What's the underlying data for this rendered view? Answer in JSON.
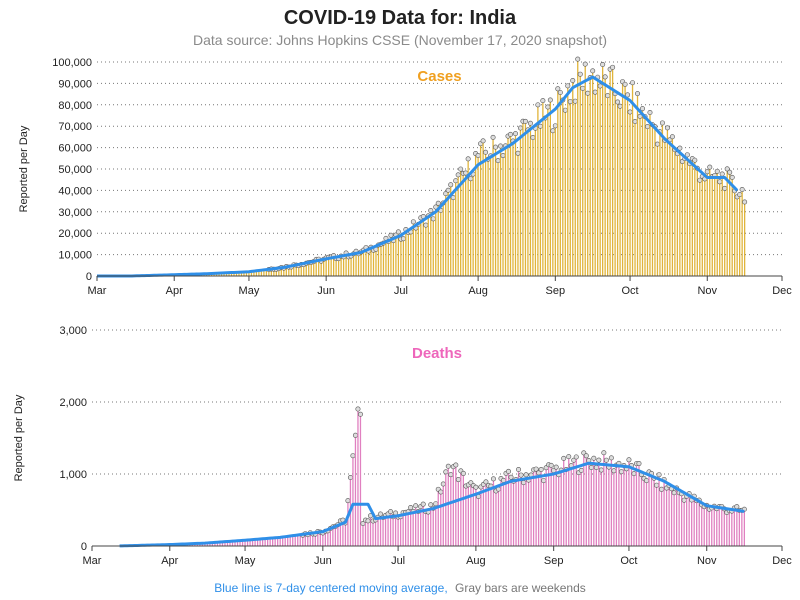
{
  "title": "COVID-19 Data for: India",
  "subtitle": "Data source: Johns Hopkins CSSE (November 17, 2020 snapshot)",
  "footnote": {
    "blue_text": "Blue line is 7-day centered moving average,",
    "gray_text": "Gray bars are weekends"
  },
  "colors": {
    "cases_bar": "#e0b43a",
    "deaths_bar": "#e080c0",
    "moving_average": "#2f8fe8",
    "cases_label": "#f0a020",
    "deaths_label": "#ee66bb",
    "footnote_blue": "#2f8fe8",
    "footnote_gray": "#777777",
    "marker_fill": "#dddddd"
  },
  "chart_data": [
    {
      "type": "bar",
      "panel_label": "Cases",
      "ylabel": "Reported per Day",
      "ylim": [
        0,
        100000
      ],
      "yticks": [
        0,
        10000,
        20000,
        30000,
        40000,
        50000,
        60000,
        70000,
        80000,
        90000,
        100000
      ],
      "ytick_labels": [
        "0",
        "10,000",
        "20,000",
        "30,000",
        "40,000",
        "50,000",
        "60,000",
        "70,000",
        "80,000",
        "90,000",
        "100,000"
      ],
      "x_month_labels": [
        "Mar",
        "Apr",
        "May",
        "Jun",
        "Jul",
        "Aug",
        "Sep",
        "Oct",
        "Nov",
        "Dec"
      ],
      "x_start": "2020-03-01",
      "x_end": "2020-12-01",
      "grid": "horizontal dotted",
      "series": [
        {
          "name": "Daily cases",
          "dates": [
            "2020-03-01",
            "2020-03-15",
            "2020-04-01",
            "2020-04-15",
            "2020-05-01",
            "2020-05-15",
            "2020-06-01",
            "2020-06-15",
            "2020-07-01",
            "2020-07-15",
            "2020-08-01",
            "2020-08-15",
            "2020-09-01",
            "2020-09-08",
            "2020-09-16",
            "2020-10-01",
            "2020-10-15",
            "2020-11-01",
            "2020-11-08",
            "2020-11-13",
            "2020-11-16"
          ],
          "values": [
            0,
            20,
            600,
            1100,
            2000,
            4000,
            8000,
            11000,
            19000,
            30000,
            56000,
            63000,
            78000,
            90000,
            94000,
            82000,
            65000,
            46000,
            46000,
            40000,
            39000
          ]
        },
        {
          "name": "7-day centered moving average",
          "dates": [
            "2020-03-01",
            "2020-03-15",
            "2020-04-01",
            "2020-04-15",
            "2020-05-01",
            "2020-05-15",
            "2020-06-01",
            "2020-06-15",
            "2020-07-01",
            "2020-07-15",
            "2020-08-01",
            "2020-08-15",
            "2020-09-01",
            "2020-09-08",
            "2020-09-16",
            "2020-10-01",
            "2020-10-15",
            "2020-11-01",
            "2020-11-08",
            "2020-11-13"
          ],
          "values": [
            0,
            20,
            600,
            1100,
            2000,
            4000,
            8000,
            11000,
            19000,
            30000,
            52000,
            62000,
            78000,
            88000,
            93000,
            82000,
            64000,
            46000,
            46000,
            40000
          ]
        }
      ]
    },
    {
      "type": "bar",
      "panel_label": "Deaths",
      "ylabel": "Reported per Day",
      "ylim": [
        0,
        3000
      ],
      "yticks": [
        0,
        1000,
        2000,
        3000
      ],
      "ytick_labels": [
        "0",
        "1,000",
        "2,000",
        "3,000"
      ],
      "x_month_labels": [
        "Mar",
        "Apr",
        "May",
        "Jun",
        "Jul",
        "Aug",
        "Sep",
        "Oct",
        "Nov",
        "Dec"
      ],
      "x_start": "2020-03-01",
      "x_end": "2020-12-01",
      "grid": "horizontal dotted",
      "series": [
        {
          "name": "Daily deaths",
          "dates": [
            "2020-03-12",
            "2020-04-01",
            "2020-04-15",
            "2020-05-01",
            "2020-05-15",
            "2020-06-01",
            "2020-06-10",
            "2020-06-16",
            "2020-06-17",
            "2020-06-20",
            "2020-07-01",
            "2020-07-15",
            "2020-07-22",
            "2020-08-01",
            "2020-08-15",
            "2020-09-01",
            "2020-09-15",
            "2020-10-01",
            "2020-10-15",
            "2020-11-01",
            "2020-11-16"
          ],
          "values": [
            1,
            20,
            40,
            80,
            120,
            200,
            350,
            2000,
            350,
            380,
            450,
            550,
            1120,
            750,
            950,
            1050,
            1200,
            1100,
            850,
            550,
            480
          ]
        },
        {
          "name": "7-day centered moving average",
          "dates": [
            "2020-03-12",
            "2020-04-01",
            "2020-04-15",
            "2020-05-01",
            "2020-05-15",
            "2020-06-01",
            "2020-06-10",
            "2020-06-13",
            "2020-06-19",
            "2020-06-22",
            "2020-07-01",
            "2020-07-15",
            "2020-08-01",
            "2020-08-15",
            "2020-09-01",
            "2020-09-15",
            "2020-10-01",
            "2020-10-15",
            "2020-11-01",
            "2020-11-16"
          ],
          "values": [
            1,
            20,
            40,
            80,
            120,
            200,
            330,
            580,
            580,
            380,
            420,
            520,
            720,
            900,
            1000,
            1150,
            1100,
            900,
            560,
            480
          ]
        }
      ]
    }
  ]
}
